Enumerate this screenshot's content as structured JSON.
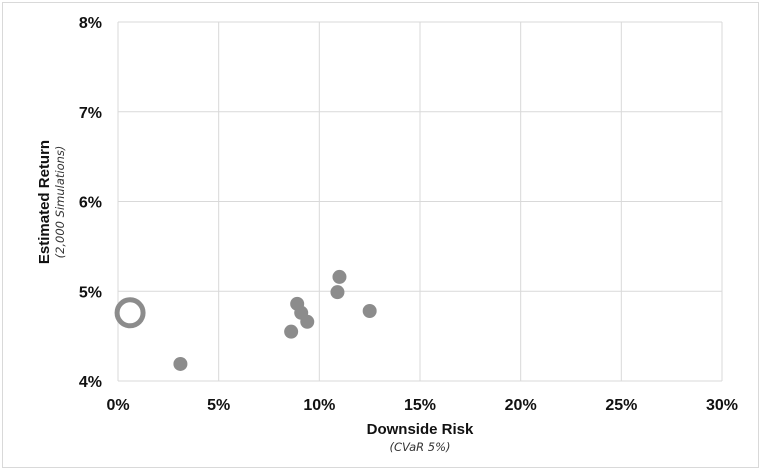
{
  "chart_data": {
    "type": "scatter",
    "title": "",
    "xlabel": "Downside Risk",
    "xlabel_sub": "(CVaR 5%)",
    "ylabel": "Estimated Return",
    "ylabel_sub": "(2,000 Simulations)",
    "xlim": [
      0,
      30
    ],
    "ylim": [
      4,
      8
    ],
    "x_ticks": [
      0,
      5,
      10,
      15,
      20,
      25,
      30
    ],
    "y_ticks": [
      4,
      5,
      6,
      7,
      8
    ],
    "x_tick_labels": [
      "0%",
      "5%",
      "10%",
      "15%",
      "20%",
      "25%",
      "30%"
    ],
    "y_tick_labels": [
      "4%",
      "5%",
      "6%",
      "7%",
      "8%"
    ],
    "grid": true,
    "legend": "none",
    "colors": {
      "point": "#8c8c8c",
      "grid": "#d9d9d9",
      "highlight_ring": "#8c8c8c"
    },
    "series": [
      {
        "points": [
          {
            "x": 0.6,
            "y": 4.76,
            "highlight": true
          },
          {
            "x": 3.1,
            "y": 4.19
          },
          {
            "x": 8.6,
            "y": 4.55
          },
          {
            "x": 8.9,
            "y": 4.86
          },
          {
            "x": 9.1,
            "y": 4.76
          },
          {
            "x": 9.4,
            "y": 4.66
          },
          {
            "x": 10.9,
            "y": 4.99
          },
          {
            "x": 11.0,
            "y": 5.16
          },
          {
            "x": 12.5,
            "y": 4.78
          }
        ]
      }
    ]
  }
}
